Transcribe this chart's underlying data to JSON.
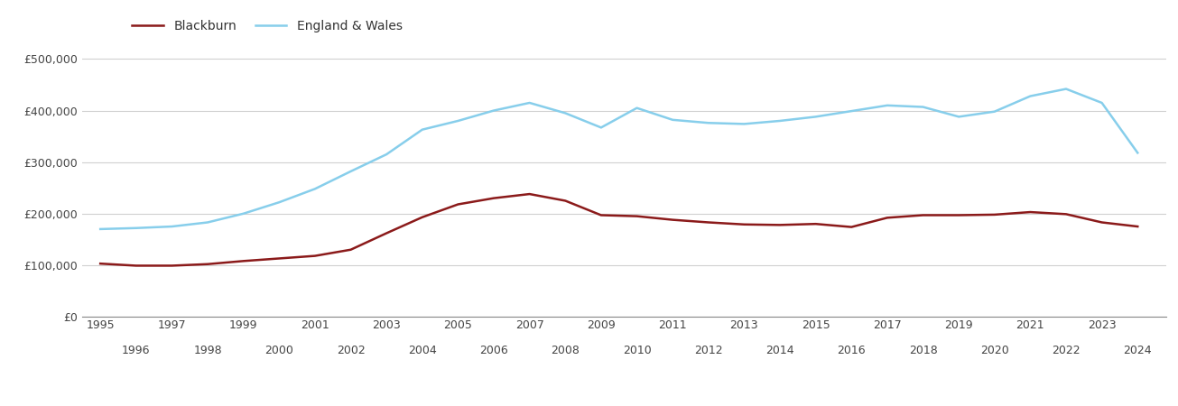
{
  "years": [
    1995,
    1996,
    1997,
    1998,
    1999,
    2000,
    2001,
    2002,
    2003,
    2004,
    2005,
    2006,
    2007,
    2008,
    2009,
    2010,
    2011,
    2012,
    2013,
    2014,
    2015,
    2016,
    2017,
    2018,
    2019,
    2020,
    2021,
    2022,
    2023,
    2024
  ],
  "blackburn": [
    103000,
    99000,
    99000,
    102000,
    108000,
    113000,
    118000,
    130000,
    162000,
    193000,
    218000,
    230000,
    238000,
    225000,
    197000,
    195000,
    188000,
    183000,
    179000,
    178000,
    180000,
    174000,
    192000,
    197000,
    197000,
    198000,
    203000,
    199000,
    183000,
    175000
  ],
  "england_wales": [
    170000,
    172000,
    175000,
    183000,
    200000,
    222000,
    248000,
    282000,
    315000,
    363000,
    380000,
    400000,
    415000,
    395000,
    367000,
    405000,
    382000,
    376000,
    374000,
    380000,
    388000,
    399000,
    410000,
    407000,
    388000,
    398000,
    428000,
    442000,
    415000,
    318000
  ],
  "blackburn_color": "#8B1A1A",
  "england_wales_color": "#87CEEB",
  "background_color": "#ffffff",
  "grid_color": "#d0d0d0",
  "ylabel_values": [
    0,
    100000,
    200000,
    300000,
    400000,
    500000
  ],
  "ylim": [
    0,
    520000
  ],
  "xlim": [
    1994.5,
    2024.8
  ],
  "legend_blackburn": "Blackburn",
  "legend_ew": "England & Wales",
  "line_width": 1.8,
  "odd_years": [
    1995,
    1997,
    1999,
    2001,
    2003,
    2005,
    2007,
    2009,
    2011,
    2013,
    2015,
    2017,
    2019,
    2021,
    2023
  ],
  "even_years": [
    1996,
    1998,
    2000,
    2002,
    2004,
    2006,
    2008,
    2010,
    2012,
    2014,
    2016,
    2018,
    2020,
    2022,
    2024
  ]
}
